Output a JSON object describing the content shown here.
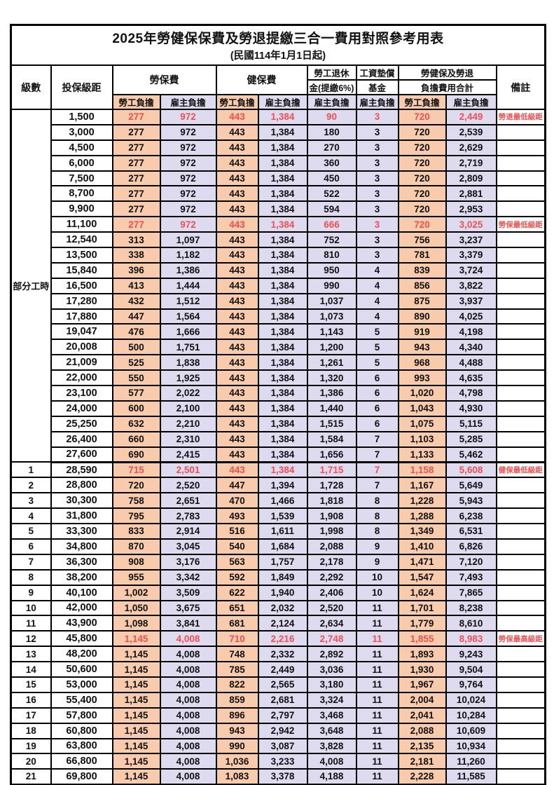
{
  "title": "2025年勞健保保費及勞退提繳三合一費用對照參考用表",
  "subtitle": "(民國114年1月1日起)",
  "header": {
    "level": "級數",
    "bracket": "投保級距",
    "labor_insurance": "勞保費",
    "health_insurance": "健保費",
    "pension_line1": "勞工退休",
    "pension_line2": "金(提繳6%)",
    "wage_fund_line1": "工資墊償",
    "wage_fund_line2": "基金",
    "total_line1": "勞健保及勞退",
    "total_line2": "負擔費用合計",
    "remark": "備註",
    "employee_share": "勞工負擔",
    "employer_share": "雇主負擔"
  },
  "part_time_label": "部分工時",
  "colors": {
    "employee_bg": "#F8CBAD",
    "employer_bg": "#DEDAF0",
    "highlight_red": "#F25050",
    "border": "#000000"
  },
  "rows": [
    {
      "level": null,
      "bracket": "1,500",
      "values": [
        "277",
        "972",
        "443",
        "1,384",
        "90",
        "3",
        "720",
        "2,449"
      ],
      "remark": "勞退最低級距",
      "highlight": true,
      "section_end": false
    },
    {
      "level": null,
      "bracket": "3,000",
      "values": [
        "277",
        "972",
        "443",
        "1,384",
        "180",
        "3",
        "720",
        "2,539"
      ],
      "remark": "",
      "highlight": false,
      "section_end": false
    },
    {
      "level": null,
      "bracket": "4,500",
      "values": [
        "277",
        "972",
        "443",
        "1,384",
        "270",
        "3",
        "720",
        "2,629"
      ],
      "remark": "",
      "highlight": false,
      "section_end": false
    },
    {
      "level": null,
      "bracket": "6,000",
      "values": [
        "277",
        "972",
        "443",
        "1,384",
        "360",
        "3",
        "720",
        "2,719"
      ],
      "remark": "",
      "highlight": false,
      "section_end": false
    },
    {
      "level": null,
      "bracket": "7,500",
      "values": [
        "277",
        "972",
        "443",
        "1,384",
        "450",
        "3",
        "720",
        "2,809"
      ],
      "remark": "",
      "highlight": false,
      "section_end": false
    },
    {
      "level": null,
      "bracket": "8,700",
      "values": [
        "277",
        "972",
        "443",
        "1,384",
        "522",
        "3",
        "720",
        "2,881"
      ],
      "remark": "",
      "highlight": false,
      "section_end": false
    },
    {
      "level": null,
      "bracket": "9,900",
      "values": [
        "277",
        "972",
        "443",
        "1,384",
        "594",
        "3",
        "720",
        "2,953"
      ],
      "remark": "",
      "highlight": false,
      "section_end": false
    },
    {
      "level": null,
      "bracket": "11,100",
      "values": [
        "277",
        "972",
        "443",
        "1,384",
        "666",
        "3",
        "720",
        "3,025"
      ],
      "remark": "勞保最低級距",
      "highlight": true,
      "section_end": false
    },
    {
      "level": null,
      "bracket": "12,540",
      "values": [
        "313",
        "1,097",
        "443",
        "1,384",
        "752",
        "3",
        "756",
        "3,237"
      ],
      "remark": "",
      "highlight": false,
      "section_end": false
    },
    {
      "level": null,
      "bracket": "13,500",
      "values": [
        "338",
        "1,182",
        "443",
        "1,384",
        "810",
        "3",
        "781",
        "3,379"
      ],
      "remark": "",
      "highlight": false,
      "section_end": false
    },
    {
      "level": null,
      "bracket": "15,840",
      "values": [
        "396",
        "1,386",
        "443",
        "1,384",
        "950",
        "4",
        "839",
        "3,724"
      ],
      "remark": "",
      "highlight": false,
      "section_end": false
    },
    {
      "level": null,
      "bracket": "16,500",
      "values": [
        "413",
        "1,444",
        "443",
        "1,384",
        "990",
        "4",
        "856",
        "3,822"
      ],
      "remark": "",
      "highlight": false,
      "section_end": false
    },
    {
      "level": null,
      "bracket": "17,280",
      "values": [
        "432",
        "1,512",
        "443",
        "1,384",
        "1,037",
        "4",
        "875",
        "3,937"
      ],
      "remark": "",
      "highlight": false,
      "section_end": false
    },
    {
      "level": null,
      "bracket": "17,880",
      "values": [
        "447",
        "1,564",
        "443",
        "1,384",
        "1,073",
        "4",
        "890",
        "4,025"
      ],
      "remark": "",
      "highlight": false,
      "section_end": false
    },
    {
      "level": null,
      "bracket": "19,047",
      "values": [
        "476",
        "1,666",
        "443",
        "1,384",
        "1,143",
        "5",
        "919",
        "4,198"
      ],
      "remark": "",
      "highlight": false,
      "section_end": false
    },
    {
      "level": null,
      "bracket": "20,008",
      "values": [
        "500",
        "1,751",
        "443",
        "1,384",
        "1,200",
        "5",
        "943",
        "4,340"
      ],
      "remark": "",
      "highlight": false,
      "section_end": false
    },
    {
      "level": null,
      "bracket": "21,009",
      "values": [
        "525",
        "1,838",
        "443",
        "1,384",
        "1,261",
        "5",
        "968",
        "4,488"
      ],
      "remark": "",
      "highlight": false,
      "section_end": false
    },
    {
      "level": null,
      "bracket": "22,000",
      "values": [
        "550",
        "1,925",
        "443",
        "1,384",
        "1,320",
        "6",
        "993",
        "4,635"
      ],
      "remark": "",
      "highlight": false,
      "section_end": false
    },
    {
      "level": null,
      "bracket": "23,100",
      "values": [
        "577",
        "2,022",
        "443",
        "1,384",
        "1,386",
        "6",
        "1,020",
        "4,798"
      ],
      "remark": "",
      "highlight": false,
      "section_end": false
    },
    {
      "level": null,
      "bracket": "24,000",
      "values": [
        "600",
        "2,100",
        "443",
        "1,384",
        "1,440",
        "6",
        "1,043",
        "4,930"
      ],
      "remark": "",
      "highlight": false,
      "section_end": false
    },
    {
      "level": null,
      "bracket": "25,250",
      "values": [
        "632",
        "2,210",
        "443",
        "1,384",
        "1,515",
        "6",
        "1,075",
        "5,115"
      ],
      "remark": "",
      "highlight": false,
      "section_end": false
    },
    {
      "level": null,
      "bracket": "26,400",
      "values": [
        "660",
        "2,310",
        "443",
        "1,384",
        "1,584",
        "7",
        "1,103",
        "5,285"
      ],
      "remark": "",
      "highlight": false,
      "section_end": false
    },
    {
      "level": null,
      "bracket": "27,600",
      "values": [
        "690",
        "2,415",
        "443",
        "1,384",
        "1,656",
        "7",
        "1,133",
        "5,462"
      ],
      "remark": "",
      "highlight": false,
      "section_end": true
    },
    {
      "level": "1",
      "bracket": "28,590",
      "values": [
        "715",
        "2,501",
        "443",
        "1,384",
        "1,715",
        "7",
        "1,158",
        "5,608"
      ],
      "remark": "健保最低級距",
      "highlight": true,
      "section_end": false
    },
    {
      "level": "2",
      "bracket": "28,800",
      "values": [
        "720",
        "2,520",
        "447",
        "1,394",
        "1,728",
        "7",
        "1,167",
        "5,649"
      ],
      "remark": "",
      "highlight": false,
      "section_end": false
    },
    {
      "level": "3",
      "bracket": "30,300",
      "values": [
        "758",
        "2,651",
        "470",
        "1,466",
        "1,818",
        "8",
        "1,228",
        "5,943"
      ],
      "remark": "",
      "highlight": false,
      "section_end": false
    },
    {
      "level": "4",
      "bracket": "31,800",
      "values": [
        "795",
        "2,783",
        "493",
        "1,539",
        "1,908",
        "8",
        "1,288",
        "6,238"
      ],
      "remark": "",
      "highlight": false,
      "section_end": false
    },
    {
      "level": "5",
      "bracket": "33,300",
      "values": [
        "833",
        "2,914",
        "516",
        "1,611",
        "1,998",
        "8",
        "1,349",
        "6,531"
      ],
      "remark": "",
      "highlight": false,
      "section_end": false
    },
    {
      "level": "6",
      "bracket": "34,800",
      "values": [
        "870",
        "3,045",
        "540",
        "1,684",
        "2,088",
        "9",
        "1,410",
        "6,826"
      ],
      "remark": "",
      "highlight": false,
      "section_end": false
    },
    {
      "level": "7",
      "bracket": "36,300",
      "values": [
        "908",
        "3,176",
        "563",
        "1,757",
        "2,178",
        "9",
        "1,471",
        "7,120"
      ],
      "remark": "",
      "highlight": false,
      "section_end": false
    },
    {
      "level": "8",
      "bracket": "38,200",
      "values": [
        "955",
        "3,342",
        "592",
        "1,849",
        "2,292",
        "10",
        "1,547",
        "7,493"
      ],
      "remark": "",
      "highlight": false,
      "section_end": false
    },
    {
      "level": "9",
      "bracket": "40,100",
      "values": [
        "1,002",
        "3,509",
        "622",
        "1,940",
        "2,406",
        "10",
        "1,624",
        "7,865"
      ],
      "remark": "",
      "highlight": false,
      "section_end": false
    },
    {
      "level": "10",
      "bracket": "42,000",
      "values": [
        "1,050",
        "3,675",
        "651",
        "2,032",
        "2,520",
        "11",
        "1,701",
        "8,238"
      ],
      "remark": "",
      "highlight": false,
      "section_end": false
    },
    {
      "level": "11",
      "bracket": "43,900",
      "values": [
        "1,098",
        "3,841",
        "681",
        "2,124",
        "2,634",
        "11",
        "1,779",
        "8,610"
      ],
      "remark": "",
      "highlight": false,
      "section_end": false
    },
    {
      "level": "12",
      "bracket": "45,800",
      "values": [
        "1,145",
        "4,008",
        "710",
        "2,216",
        "2,748",
        "11",
        "1,855",
        "8,983"
      ],
      "remark": "勞保最高級距",
      "highlight": true,
      "section_end": false
    },
    {
      "level": "13",
      "bracket": "48,200",
      "values": [
        "1,145",
        "4,008",
        "748",
        "2,332",
        "2,892",
        "11",
        "1,893",
        "9,243"
      ],
      "remark": "",
      "highlight": false,
      "section_end": false
    },
    {
      "level": "14",
      "bracket": "50,600",
      "values": [
        "1,145",
        "4,008",
        "785",
        "2,449",
        "3,036",
        "11",
        "1,930",
        "9,504"
      ],
      "remark": "",
      "highlight": false,
      "section_end": false
    },
    {
      "level": "15",
      "bracket": "53,000",
      "values": [
        "1,145",
        "4,008",
        "822",
        "2,565",
        "3,180",
        "11",
        "1,967",
        "9,764"
      ],
      "remark": "",
      "highlight": false,
      "section_end": false
    },
    {
      "level": "16",
      "bracket": "55,400",
      "values": [
        "1,145",
        "4,008",
        "859",
        "2,681",
        "3,324",
        "11",
        "2,004",
        "10,024"
      ],
      "remark": "",
      "highlight": false,
      "section_end": false
    },
    {
      "level": "17",
      "bracket": "57,800",
      "values": [
        "1,145",
        "4,008",
        "896",
        "2,797",
        "3,468",
        "11",
        "2,041",
        "10,284"
      ],
      "remark": "",
      "highlight": false,
      "section_end": false
    },
    {
      "level": "18",
      "bracket": "60,800",
      "values": [
        "1,145",
        "4,008",
        "943",
        "2,942",
        "3,648",
        "11",
        "2,088",
        "10,609"
      ],
      "remark": "",
      "highlight": false,
      "section_end": false
    },
    {
      "level": "19",
      "bracket": "63,800",
      "values": [
        "1,145",
        "4,008",
        "990",
        "3,087",
        "3,828",
        "11",
        "2,135",
        "10,934"
      ],
      "remark": "",
      "highlight": false,
      "section_end": false
    },
    {
      "level": "20",
      "bracket": "66,800",
      "values": [
        "1,145",
        "4,008",
        "1,036",
        "3,233",
        "4,008",
        "11",
        "2,181",
        "11,260"
      ],
      "remark": "",
      "highlight": false,
      "section_end": false
    },
    {
      "level": "21",
      "bracket": "69,800",
      "values": [
        "1,145",
        "4,008",
        "1,083",
        "3,378",
        "4,188",
        "11",
        "2,228",
        "11,585"
      ],
      "remark": "",
      "highlight": false,
      "section_end": false
    }
  ]
}
